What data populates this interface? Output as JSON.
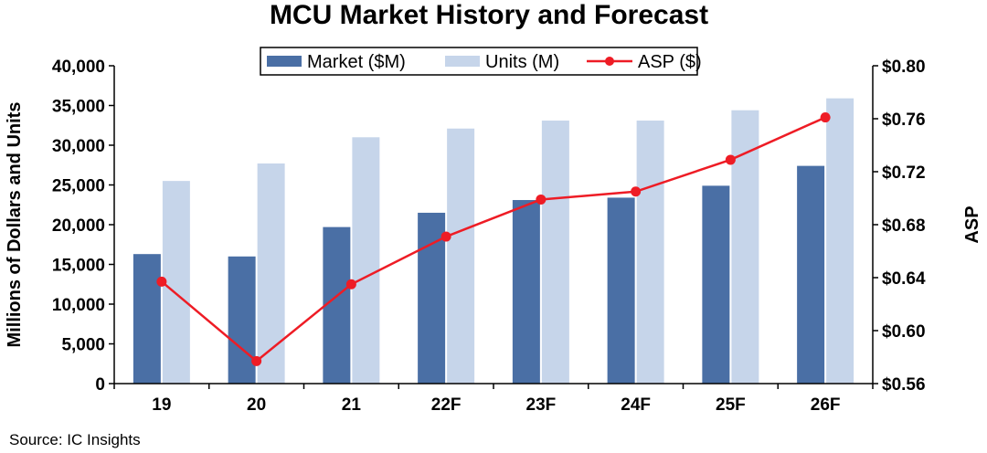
{
  "chart_data": {
    "type": "bar",
    "title": "MCU Market History and Forecast",
    "categories": [
      "19",
      "20",
      "21",
      "22F",
      "23F",
      "24F",
      "25F",
      "26F"
    ],
    "series": [
      {
        "name": "Market ($M)",
        "axis": "left",
        "kind": "bar",
        "color": "#4a6fa5",
        "values": [
          16300,
          16000,
          19700,
          21500,
          23100,
          23400,
          24900,
          27400
        ]
      },
      {
        "name": "Units (M)",
        "axis": "left",
        "kind": "bar",
        "color": "#c6d5ea",
        "values": [
          25500,
          27700,
          31000,
          32100,
          33100,
          33100,
          34400,
          35900
        ]
      },
      {
        "name": "ASP ($)",
        "axis": "right",
        "kind": "line",
        "color": "#ee1c25",
        "values": [
          0.637,
          0.577,
          0.635,
          0.671,
          0.699,
          0.705,
          0.729,
          0.761
        ]
      }
    ],
    "ylabel": "Millions of Dollars and Units",
    "ylim": [
      0,
      40000
    ],
    "yticks": [
      "0",
      "5,000",
      "10,000",
      "15,000",
      "20,000",
      "25,000",
      "30,000",
      "35,000",
      "40,000"
    ],
    "y2label": "ASP",
    "y2lim": [
      0.56,
      0.8
    ],
    "y2ticks": [
      "$0.56",
      "$0.60",
      "$0.64",
      "$0.68",
      "$0.72",
      "$0.76",
      "$0.80"
    ],
    "legend_position": "top",
    "grid": false,
    "source": "Source:  IC Insights"
  }
}
